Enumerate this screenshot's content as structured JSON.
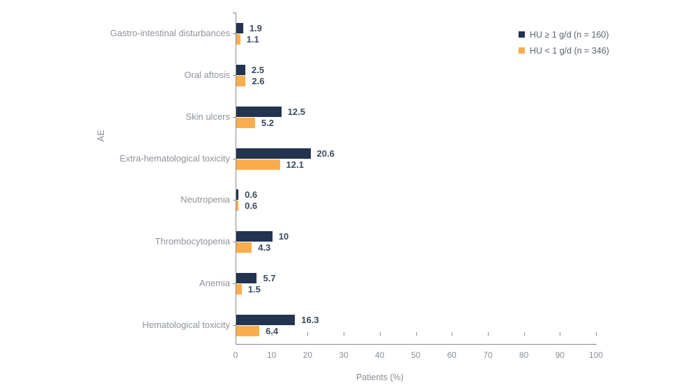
{
  "chart_data": {
    "type": "bar",
    "orientation": "horizontal",
    "title": "",
    "xlabel": "Patients (%)",
    "ylabel": "AE",
    "xlim": [
      0,
      100
    ],
    "xticks": [
      0,
      10,
      20,
      30,
      40,
      50,
      60,
      70,
      80,
      90,
      100
    ],
    "grid": false,
    "legend_position": "top-right",
    "categories": [
      "Gastro-intestinal disturbances",
      "Oral aftosis",
      "Skin ulcers",
      "Extra-hematological toxicity",
      "Neutropenia",
      "Thrombocytopenia",
      "Anemia",
      "Hematological toxicity"
    ],
    "series": [
      {
        "name": "HU ≥ 1 g/d (n = 160)",
        "color": "#22344f",
        "values": [
          1.9,
          2.5,
          12.5,
          20.6,
          0.6,
          10,
          5.7,
          16.3
        ]
      },
      {
        "name": "HU < 1 g/d (n = 346)",
        "color": "#fbad4e",
        "values": [
          1.1,
          2.6,
          5.2,
          12.1,
          0.6,
          4.3,
          1.5,
          6.4
        ]
      }
    ],
    "colors": {
      "value_label": "#3b4a5e",
      "category_label": "#8d939b",
      "tick_label": "#878d95",
      "axis_line": "#888888",
      "legend_text": "#5a6470",
      "background": "#ffffff"
    }
  }
}
